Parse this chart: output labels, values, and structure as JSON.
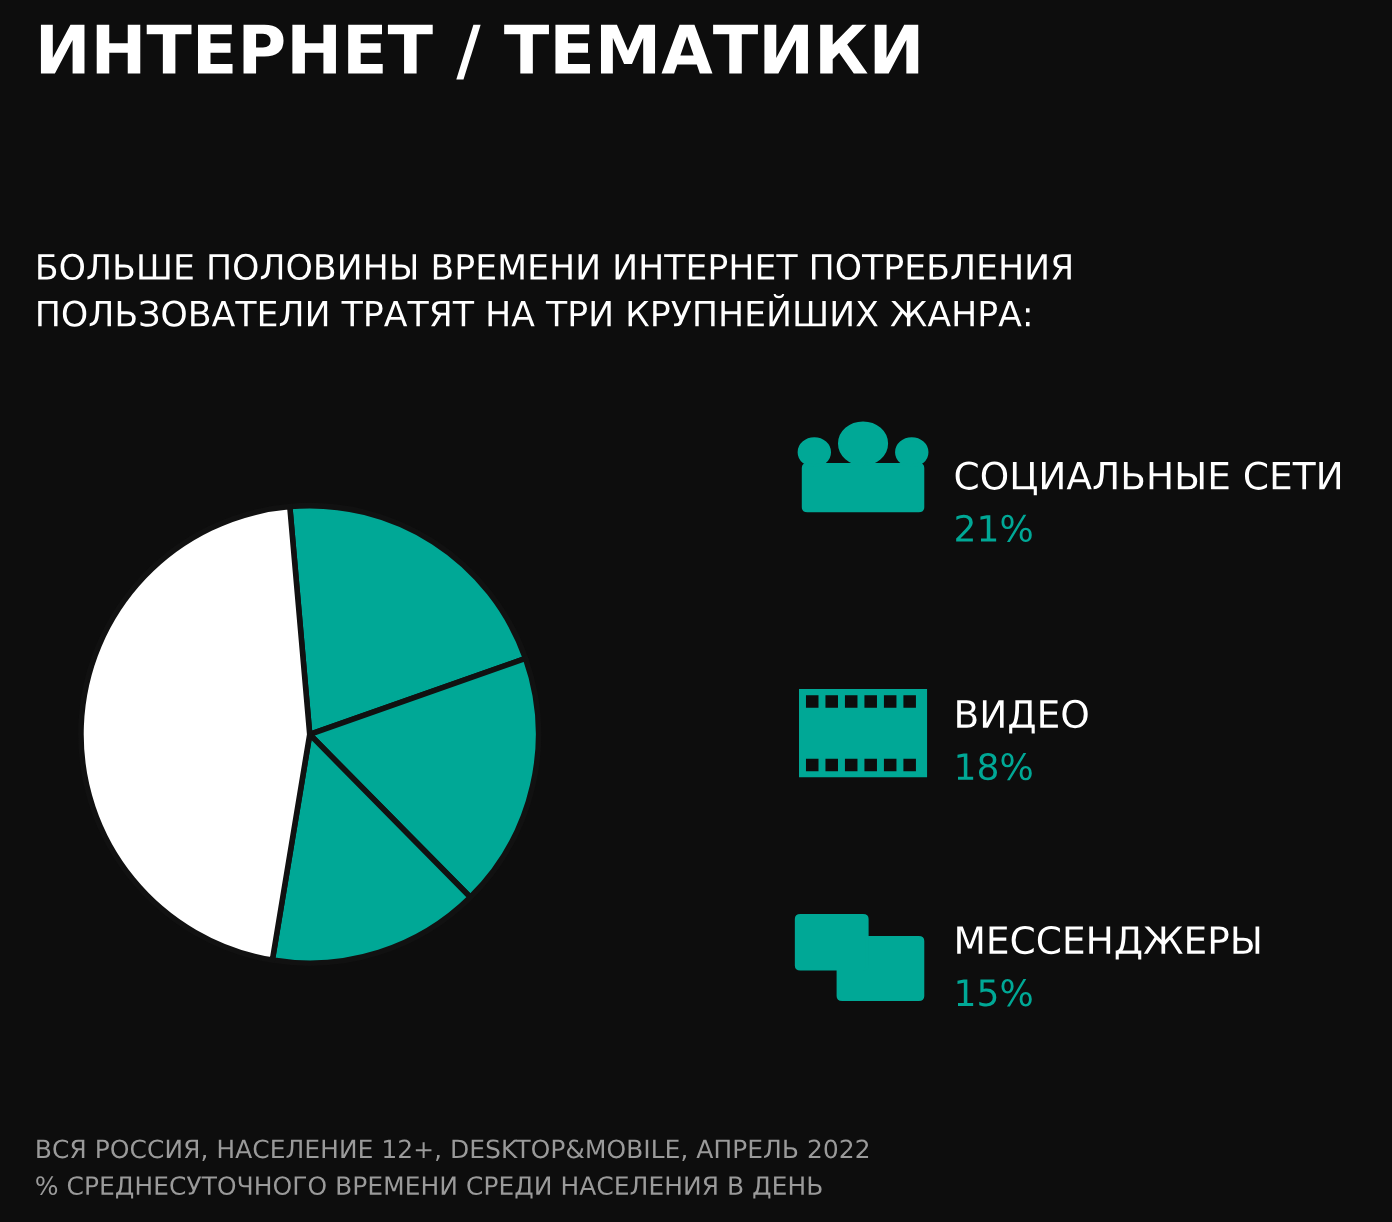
{
  "chart_data": {
    "type": "pie",
    "title": "ИНТЕРНЕТ / ТЕМАТИКИ",
    "subtitle": "БОЛЬШЕ ПОЛОВИНЫ ВРЕМЕНИ ИНТЕРНЕТ ПОТРЕБЛЕНИЯ\nПОЛЬЗОВАТЕЛИ ТРАТЯТ НА ТРИ КРУПНЕЙШИХ ЖАНРА:",
    "categories": [
      "СОЦИАЛЬНЫЕ СЕТИ",
      "ВИДЕО",
      "МЕССЕНДЖЕРЫ",
      null
    ],
    "values": [
      21,
      18,
      15,
      46
    ],
    "colors": [
      "#00a896",
      "#00a896",
      "#00a896",
      "#ffffff"
    ],
    "value_labels": [
      "21%",
      "18%",
      "15%",
      null
    ],
    "legend": "right",
    "annotations": [
      "ВСЯ РОССИЯ, НАСЕЛЕНИЕ 12+, DESKTOP&MOBILE, АПРЕЛЬ 2022",
      "% СРЕДНЕСУТОЧНОГО ВРЕМЕНИ СРЕДИ НАСЕЛЕНИЯ В ДЕНЬ"
    ]
  }
}
